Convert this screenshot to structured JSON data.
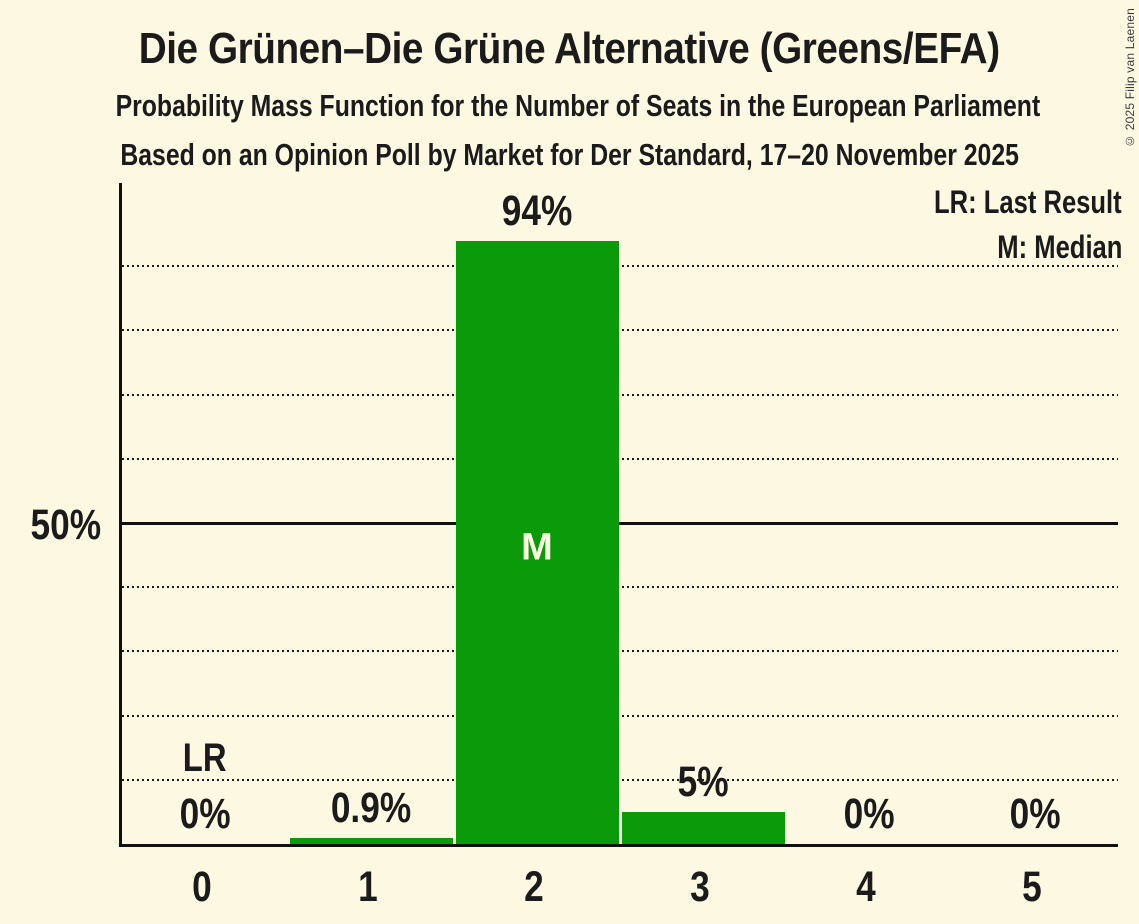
{
  "chart_data": {
    "type": "bar",
    "title": "Die Grünen–Die Grüne Alternative (Greens/EFA)",
    "subtitle_line1": "Probability Mass Function for the Number of Seats in the European Parliament",
    "subtitle_line2": "Based on an Opinion Poll by Market for Der Standard, 17–20 November 2025",
    "categories": [
      "0",
      "1",
      "2",
      "3",
      "4",
      "5"
    ],
    "values": [
      0,
      0.9,
      94,
      5,
      0,
      0
    ],
    "value_labels": [
      "0%",
      "0.9%",
      "94%",
      "5%",
      "0%",
      "0%"
    ],
    "ylim": [
      0,
      100
    ],
    "y_axis": {
      "tick_label": "50%",
      "tick_value": 50,
      "solid_gridline_percent": 50,
      "dotted_gridlines_percent": [
        10,
        20,
        30,
        40,
        60,
        70,
        80,
        90
      ]
    },
    "median": {
      "category_index": 2,
      "label": "M"
    },
    "last_result": {
      "category_index": 0,
      "label": "LR"
    },
    "legend": {
      "lr": "LR: Last Result",
      "m": "M: Median"
    },
    "legend_position": "top-right",
    "grid": "horizontal-dotted",
    "colors": {
      "bar": "#0A9A0A",
      "background": "#FDF8E2",
      "text": "#1B1B1B",
      "median_text": "#FDF8E2"
    },
    "copyright": "© 2025 Filip van Laenen"
  }
}
